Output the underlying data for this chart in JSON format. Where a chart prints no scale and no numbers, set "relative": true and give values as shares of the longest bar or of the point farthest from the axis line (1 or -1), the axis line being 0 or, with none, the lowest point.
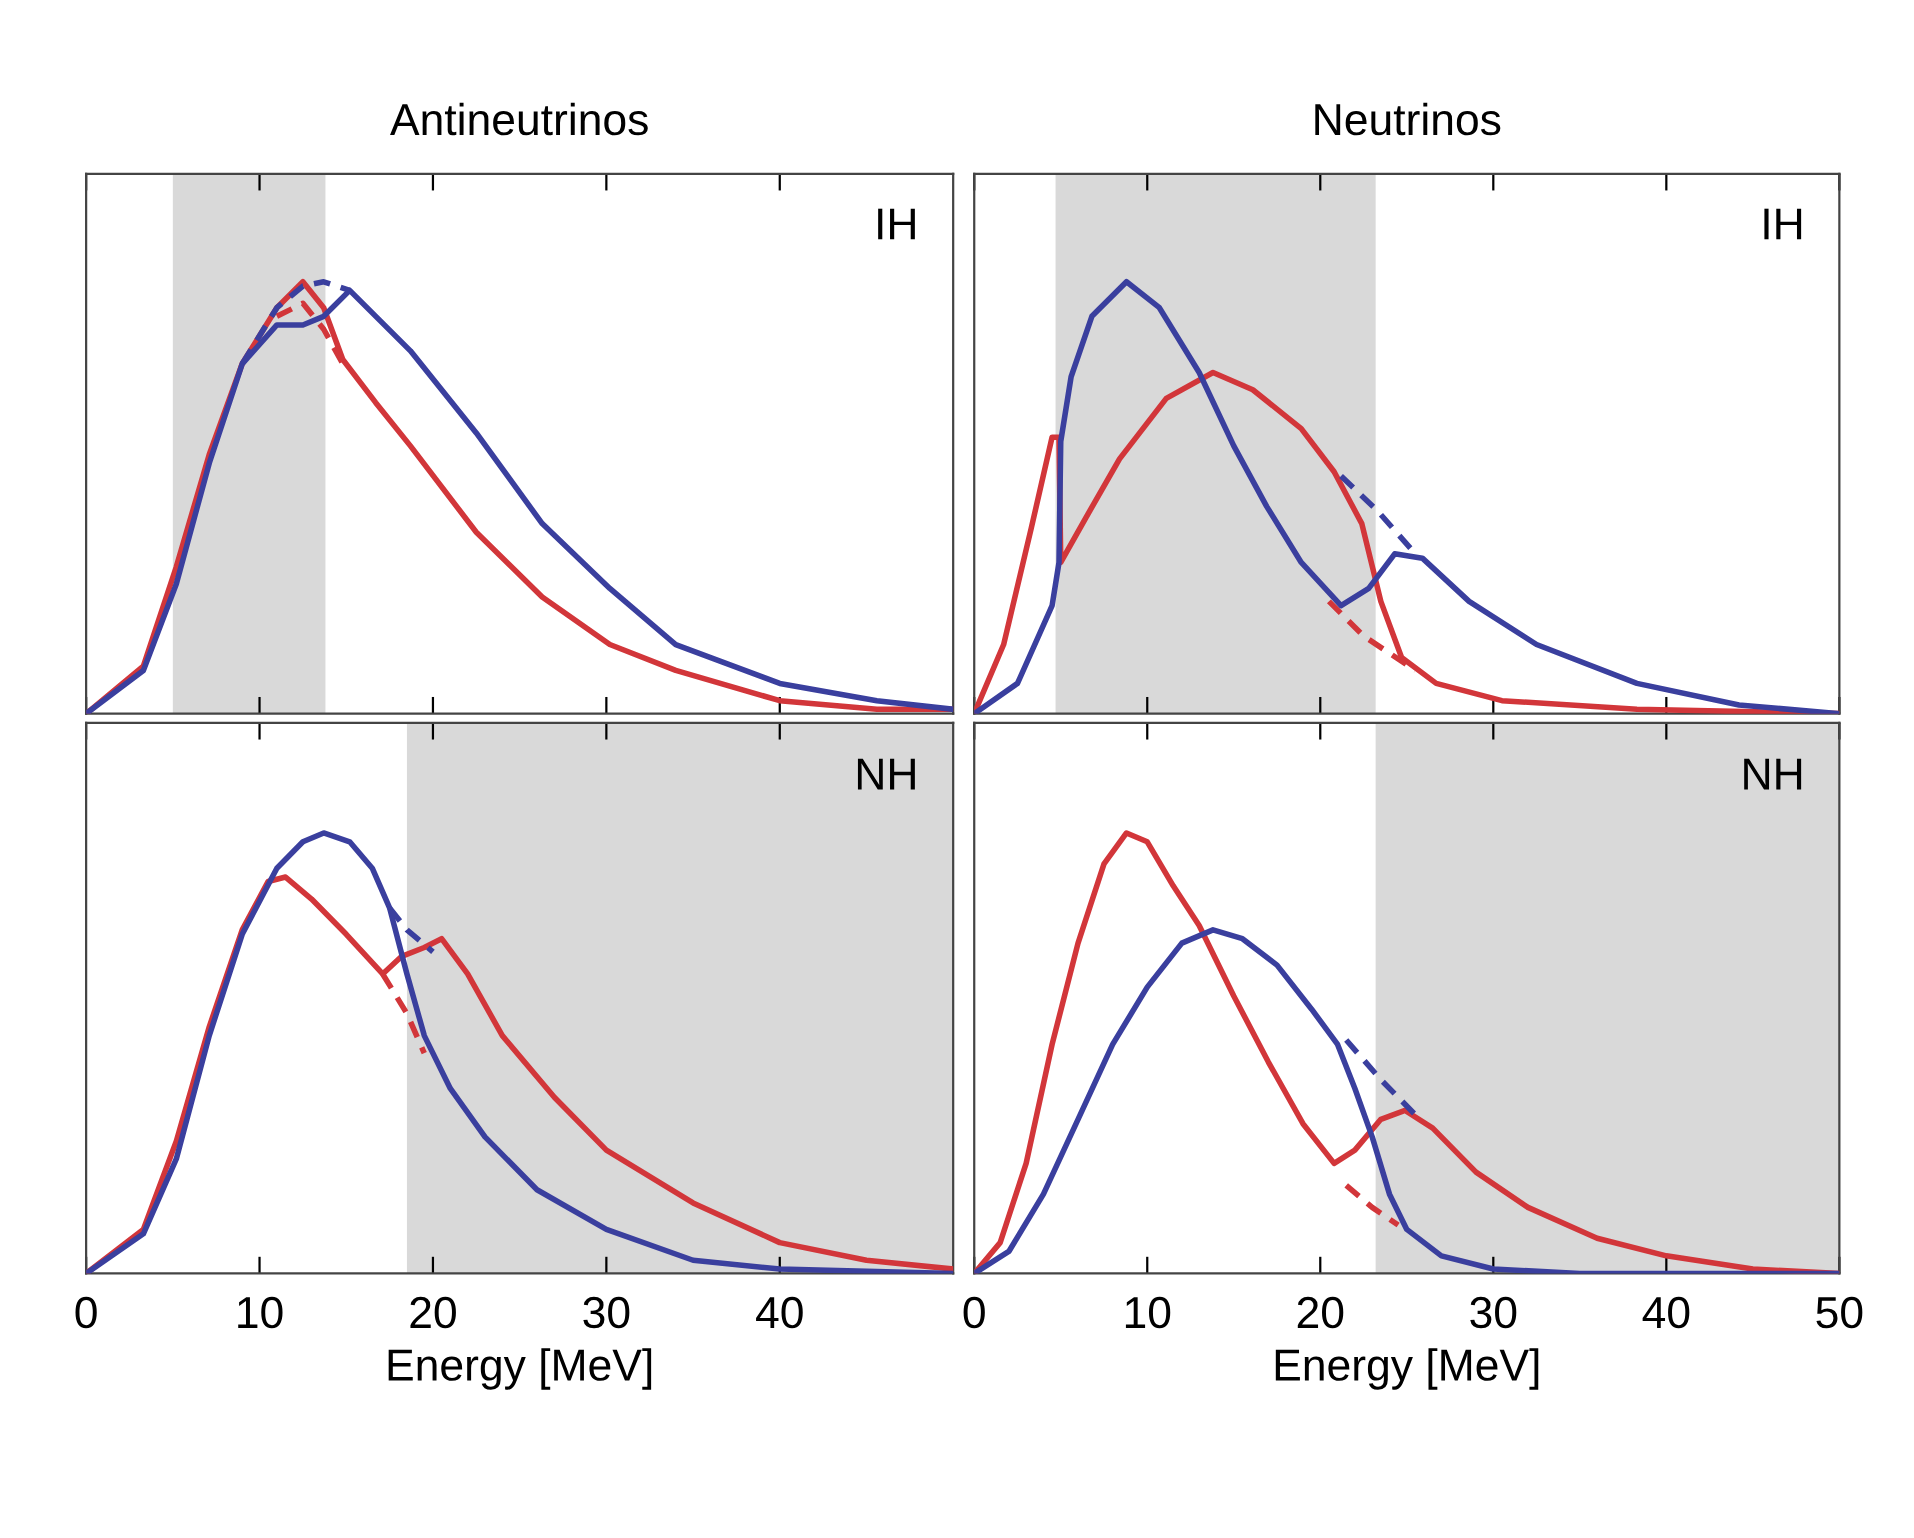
{
  "chart_data": [
    {
      "type": "line",
      "title": "Antineutrinos",
      "relative": true,
      "xlim": [
        0,
        50
      ],
      "xticks": [
        0,
        10,
        20,
        30,
        40
      ],
      "tick_labels": false,
      "annotations": [
        "IH"
      ],
      "bands": [
        {
          "axis": "x",
          "from": 5,
          "to": 13.8,
          "color": "#d9d9d9"
        }
      ],
      "series": [
        {
          "color": "#d2363a",
          "line_style": "solid",
          "x": [
            0,
            3.3,
            5.2,
            7.1,
            9,
            11,
            12.5,
            13.7,
            14.8,
            16.7,
            18.7,
            22.5,
            26.3,
            30.2,
            34,
            40,
            45.6,
            50
          ],
          "values": [
            0,
            0.11,
            0.34,
            0.6,
            0.81,
            0.94,
            1.0,
            0.94,
            0.82,
            0.72,
            0.62,
            0.42,
            0.27,
            0.16,
            0.1,
            0.03,
            0.01,
            0.01
          ]
        },
        {
          "color": "#d2363a",
          "line_style": "dashed",
          "x": [
            11,
            12.5,
            13.7,
            14.8
          ],
          "values": [
            0.92,
            0.95,
            0.89,
            0.81
          ]
        },
        {
          "color": "#3a3f9e",
          "line_style": "solid",
          "x": [
            0,
            3.3,
            5.2,
            7.1,
            9,
            11,
            12.5,
            13.7,
            15.2,
            18.7,
            22.5,
            26.3,
            30.2,
            34,
            40,
            45.6,
            50
          ],
          "values": [
            0,
            0.1,
            0.3,
            0.58,
            0.81,
            0.9,
            0.9,
            0.92,
            0.98,
            0.84,
            0.65,
            0.44,
            0.29,
            0.16,
            0.07,
            0.03,
            0.01
          ]
        },
        {
          "color": "#3a3f9e",
          "line_style": "dashed",
          "x": [
            9,
            11,
            12.5,
            13.7,
            15.2
          ],
          "values": [
            0.81,
            0.94,
            0.99,
            1.0,
            0.98
          ]
        }
      ]
    },
    {
      "type": "line",
      "title": "Neutrinos",
      "relative": true,
      "xlim": [
        0,
        50
      ],
      "xticks": [
        0,
        10,
        20,
        30,
        40,
        50
      ],
      "tick_labels": false,
      "annotations": [
        "IH"
      ],
      "bands": [
        {
          "axis": "x",
          "from": 4.7,
          "to": 23.2,
          "color": "#d9d9d9"
        }
      ],
      "series": [
        {
          "color": "#d2363a",
          "line_style": "solid",
          "x": [
            0,
            1.7,
            3.3,
            4.5,
            4.9,
            5.0,
            6.4,
            8.4,
            11.1,
            13.8,
            16.1,
            18.9,
            20.8,
            22.4,
            23.5,
            24.7,
            26.7,
            30.5,
            38.3,
            50
          ],
          "values": [
            0,
            0.16,
            0.43,
            0.64,
            0.64,
            0.35,
            0.45,
            0.59,
            0.73,
            0.79,
            0.75,
            0.66,
            0.56,
            0.44,
            0.26,
            0.13,
            0.07,
            0.03,
            0.01,
            0.0
          ]
        },
        {
          "color": "#d2363a",
          "line_style": "dashed",
          "x": [
            20.5,
            22.5,
            25.5
          ],
          "values": [
            0.26,
            0.18,
            0.1
          ]
        },
        {
          "color": "#3a3f9e",
          "line_style": "solid",
          "x": [
            0,
            2.5,
            4.5,
            4.9,
            5.0,
            5.6,
            6.8,
            8.8,
            10.7,
            13,
            15,
            16.9,
            18.9,
            21.2,
            22.8,
            24.3,
            25.9,
            28.6,
            32.5,
            38.3,
            44.2,
            50
          ],
          "values": [
            0,
            0.07,
            0.25,
            0.35,
            0.63,
            0.78,
            0.92,
            1.0,
            0.94,
            0.79,
            0.62,
            0.48,
            0.35,
            0.25,
            0.29,
            0.37,
            0.36,
            0.26,
            0.16,
            0.07,
            0.02,
            0.0
          ]
        },
        {
          "color": "#3a3f9e",
          "line_style": "dashed",
          "x": [
            21.2,
            23.3,
            25.5
          ],
          "values": [
            0.55,
            0.47,
            0.37
          ]
        }
      ]
    },
    {
      "type": "line",
      "xlabel": "Energy [MeV]",
      "relative": true,
      "xlim": [
        0,
        50
      ],
      "xticks": [
        0,
        10,
        20,
        30,
        40
      ],
      "tick_labels": "x",
      "annotations": [
        "NH"
      ],
      "bands": [
        {
          "axis": "x",
          "from": 18.5,
          "to": 50,
          "color": "#d9d9d9"
        }
      ],
      "series": [
        {
          "color": "#d2363a",
          "line_style": "solid",
          "x": [
            0,
            3.3,
            5.2,
            7.1,
            9,
            10.5,
            11.5,
            13,
            15,
            17.1,
            18.2,
            19.5,
            20.5,
            22,
            24,
            27,
            30,
            35,
            40,
            45,
            50
          ],
          "values": [
            0,
            0.1,
            0.3,
            0.56,
            0.78,
            0.89,
            0.9,
            0.85,
            0.77,
            0.68,
            0.72,
            0.74,
            0.76,
            0.68,
            0.54,
            0.4,
            0.28,
            0.16,
            0.07,
            0.03,
            0.01
          ]
        },
        {
          "color": "#d2363a",
          "line_style": "dashed",
          "x": [
            17.1,
            18.5,
            19.5
          ],
          "values": [
            0.68,
            0.59,
            0.5
          ]
        },
        {
          "color": "#3a3f9e",
          "line_style": "solid",
          "x": [
            0,
            3.3,
            5.2,
            7.1,
            9,
            11,
            12.5,
            13.7,
            15.2,
            16.5,
            17.5,
            18.5,
            19.5,
            21,
            23,
            26,
            30,
            35,
            40,
            50
          ],
          "values": [
            0,
            0.09,
            0.26,
            0.54,
            0.77,
            0.92,
            0.98,
            1.0,
            0.98,
            0.92,
            0.83,
            0.68,
            0.54,
            0.42,
            0.31,
            0.19,
            0.1,
            0.03,
            0.01,
            0.0
          ]
        },
        {
          "color": "#3a3f9e",
          "line_style": "dashed",
          "x": [
            17.5,
            18.5,
            20
          ],
          "values": [
            0.83,
            0.78,
            0.73
          ]
        }
      ]
    },
    {
      "type": "line",
      "xlabel": "Energy [MeV]",
      "relative": true,
      "xlim": [
        0,
        50
      ],
      "xticks": [
        0,
        10,
        20,
        30,
        40,
        50
      ],
      "tick_labels": "x",
      "annotations": [
        "NH"
      ],
      "bands": [
        {
          "axis": "x",
          "from": 23.2,
          "to": 50,
          "color": "#d9d9d9"
        }
      ],
      "series": [
        {
          "color": "#d2363a",
          "line_style": "solid",
          "x": [
            0,
            1.5,
            3,
            4.5,
            6,
            7.5,
            8.8,
            10,
            11.5,
            13,
            15,
            17,
            19,
            20.8,
            22,
            23.5,
            24.9,
            26.5,
            29,
            32,
            36,
            40,
            45,
            50
          ],
          "values": [
            0,
            0.07,
            0.25,
            0.52,
            0.75,
            0.93,
            1.0,
            0.98,
            0.88,
            0.79,
            0.63,
            0.48,
            0.34,
            0.25,
            0.28,
            0.35,
            0.37,
            0.33,
            0.23,
            0.15,
            0.08,
            0.04,
            0.01,
            0.0
          ]
        },
        {
          "color": "#d2363a",
          "line_style": "dashed",
          "x": [
            21.5,
            23,
            24.5
          ],
          "values": [
            0.2,
            0.15,
            0.11
          ]
        },
        {
          "color": "#3a3f9e",
          "line_style": "solid",
          "x": [
            0,
            2,
            4,
            6,
            8,
            10,
            12,
            13.8,
            15.5,
            17.5,
            19.5,
            21,
            22,
            23,
            24,
            25,
            27,
            30,
            35,
            50
          ],
          "values": [
            0,
            0.05,
            0.18,
            0.35,
            0.52,
            0.65,
            0.75,
            0.78,
            0.76,
            0.7,
            0.6,
            0.52,
            0.42,
            0.31,
            0.18,
            0.1,
            0.04,
            0.01,
            0.0,
            0
          ]
        },
        {
          "color": "#3a3f9e",
          "line_style": "dashed",
          "x": [
            21.5,
            23.5,
            25.5
          ],
          "values": [
            0.53,
            0.44,
            0.36
          ]
        }
      ]
    }
  ]
}
